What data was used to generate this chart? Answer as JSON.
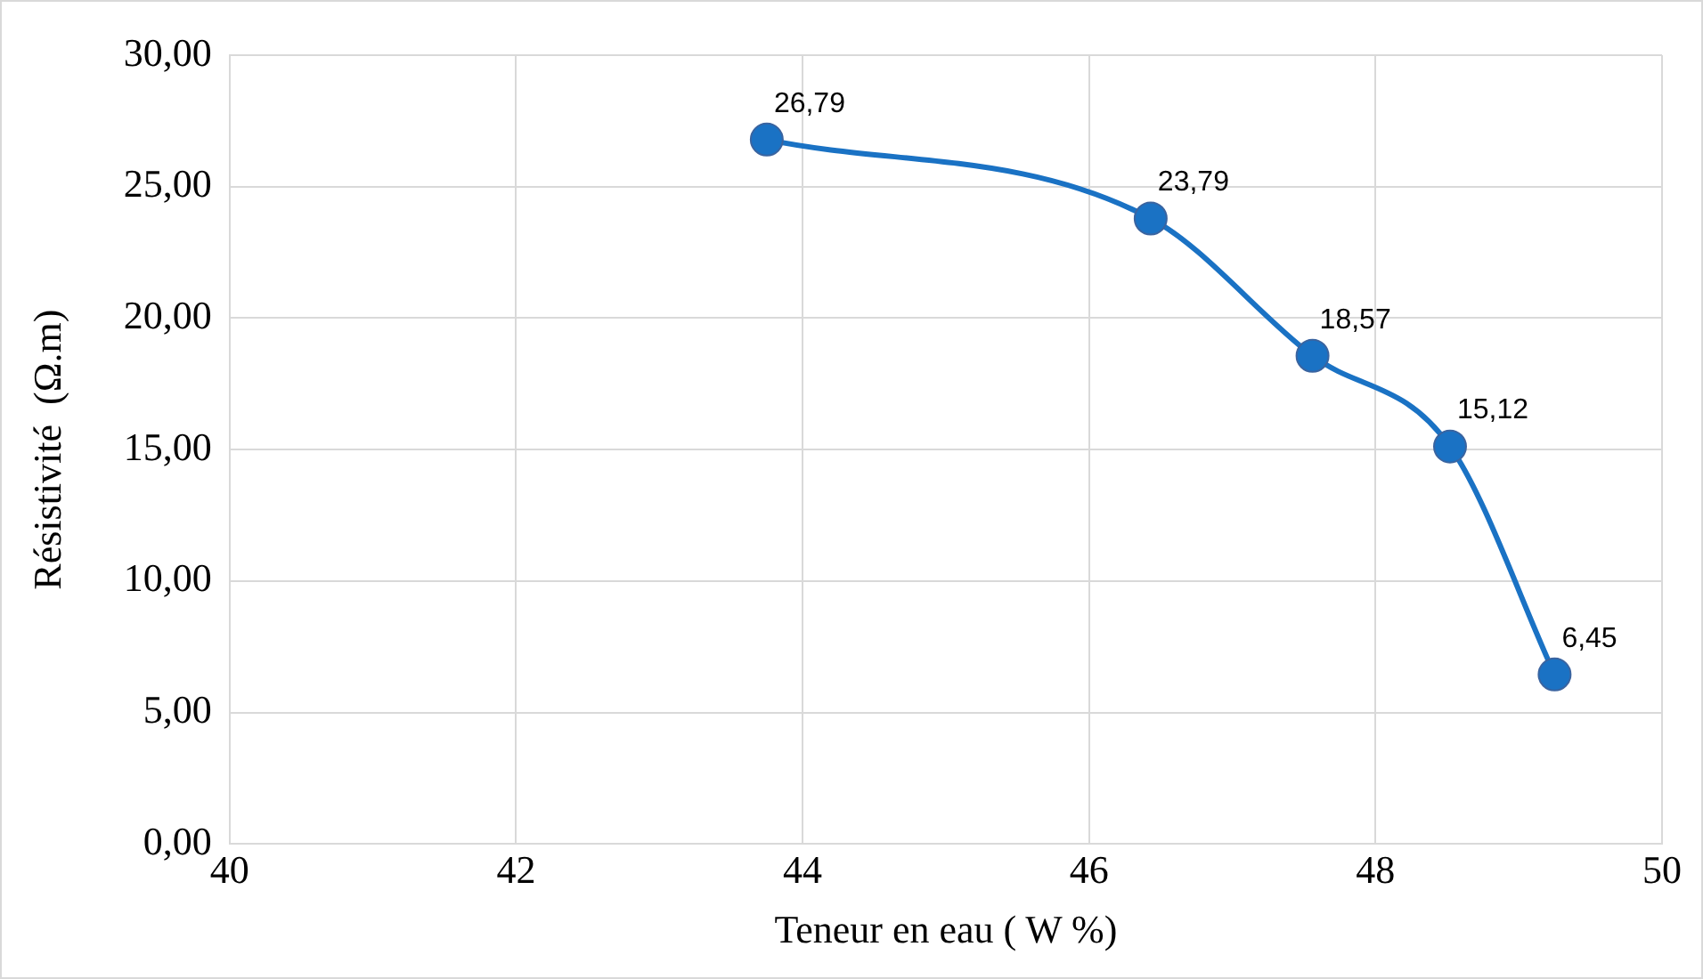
{
  "chart_data": {
    "type": "line",
    "xlabel": "Teneur en eau ( W %)",
    "ylabel": "Résistivité  (Ω.m)",
    "x": [
      43.75,
      46.43,
      47.56,
      48.52,
      49.25
    ],
    "series": [
      {
        "color": "#1a72c4",
        "values": [
          26.79,
          23.79,
          18.57,
          15.12,
          6.45
        ]
      }
    ],
    "value_labels": [
      "26,79",
      "23,79",
      "18,57",
      "15,12",
      "6,45"
    ],
    "xlim": [
      40,
      50
    ],
    "xticks": [
      40,
      42,
      44,
      46,
      48,
      50
    ],
    "ylim": [
      0,
      30
    ],
    "yticks": [
      {
        "value": 0,
        "label": "0,00"
      },
      {
        "value": 5,
        "label": "5,00"
      },
      {
        "value": 10,
        "label": "10,00"
      },
      {
        "value": 15,
        "label": "15,00"
      },
      {
        "value": 20,
        "label": "20,00"
      },
      {
        "value": 25,
        "label": "25,00"
      },
      {
        "value": 30,
        "label": "30,00"
      }
    ],
    "grid": true,
    "legend": false,
    "marker": "circle",
    "line_style": "solid"
  }
}
